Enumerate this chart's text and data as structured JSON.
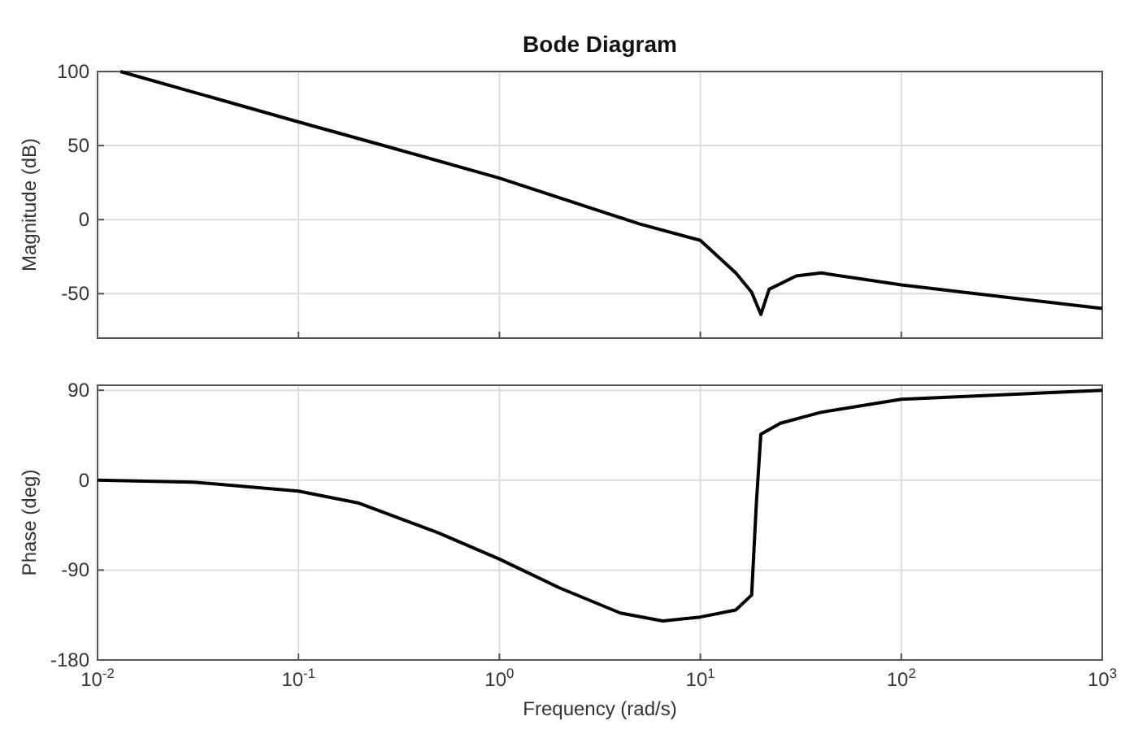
{
  "chart_data": [
    {
      "type": "line",
      "title": "Bode Diagram",
      "ylabel": "Magnitude (dB)",
      "log": "x",
      "grid": true,
      "tick_labels": "y",
      "xlim": [
        0.01,
        1000
      ],
      "xticks": [
        {
          "value": 0.01,
          "label": null
        },
        {
          "value": 0.1,
          "label": null
        },
        {
          "value": 1,
          "label": null
        },
        {
          "value": 10,
          "label": null
        },
        {
          "value": 100,
          "label": null
        },
        {
          "value": 1000,
          "label": null
        }
      ],
      "ylim": [
        -80,
        100
      ],
      "yticks": [
        -50,
        0,
        50,
        100
      ],
      "series": [
        {
          "color": "#000000",
          "x": [
            0.013,
            0.1,
            0.3,
            1,
            5,
            10,
            15,
            18,
            20,
            22,
            30,
            40,
            100,
            1000
          ],
          "values": [
            100,
            66,
            48,
            28,
            -3,
            -14,
            -36,
            -49,
            -64,
            -47,
            -38,
            -36,
            -44,
            -60
          ]
        }
      ]
    },
    {
      "type": "line",
      "xlabel": "Frequency (rad/s)",
      "ylabel": "Phase (deg)",
      "log": "x",
      "grid": true,
      "xlim": [
        0.01,
        1000
      ],
      "xticks": [
        {
          "value": 0.01,
          "label": "10$^{-2}$"
        },
        {
          "value": 0.1,
          "label": "10$^{-1}$"
        },
        {
          "value": 1,
          "label": "10$^{0}$"
        },
        {
          "value": 10,
          "label": "10$^{1}$"
        },
        {
          "value": 100,
          "label": "10$^{2}$"
        },
        {
          "value": 1000,
          "label": "10$^{3}$"
        }
      ],
      "ylim": [
        -180,
        95
      ],
      "yticks": [
        -180,
        -90,
        0,
        90
      ],
      "series": [
        {
          "color": "#000000",
          "x": [
            0.01,
            0.03,
            0.1,
            0.2,
            0.5,
            1,
            2,
            4,
            6.5,
            10,
            15,
            18,
            19,
            20,
            25,
            40,
            100,
            1000
          ],
          "values": [
            0,
            -2,
            -11,
            -23,
            -53,
            -79,
            -108,
            -133,
            -141,
            -137,
            -130,
            -115,
            -23,
            46,
            57,
            68,
            81,
            90
          ]
        }
      ]
    }
  ]
}
